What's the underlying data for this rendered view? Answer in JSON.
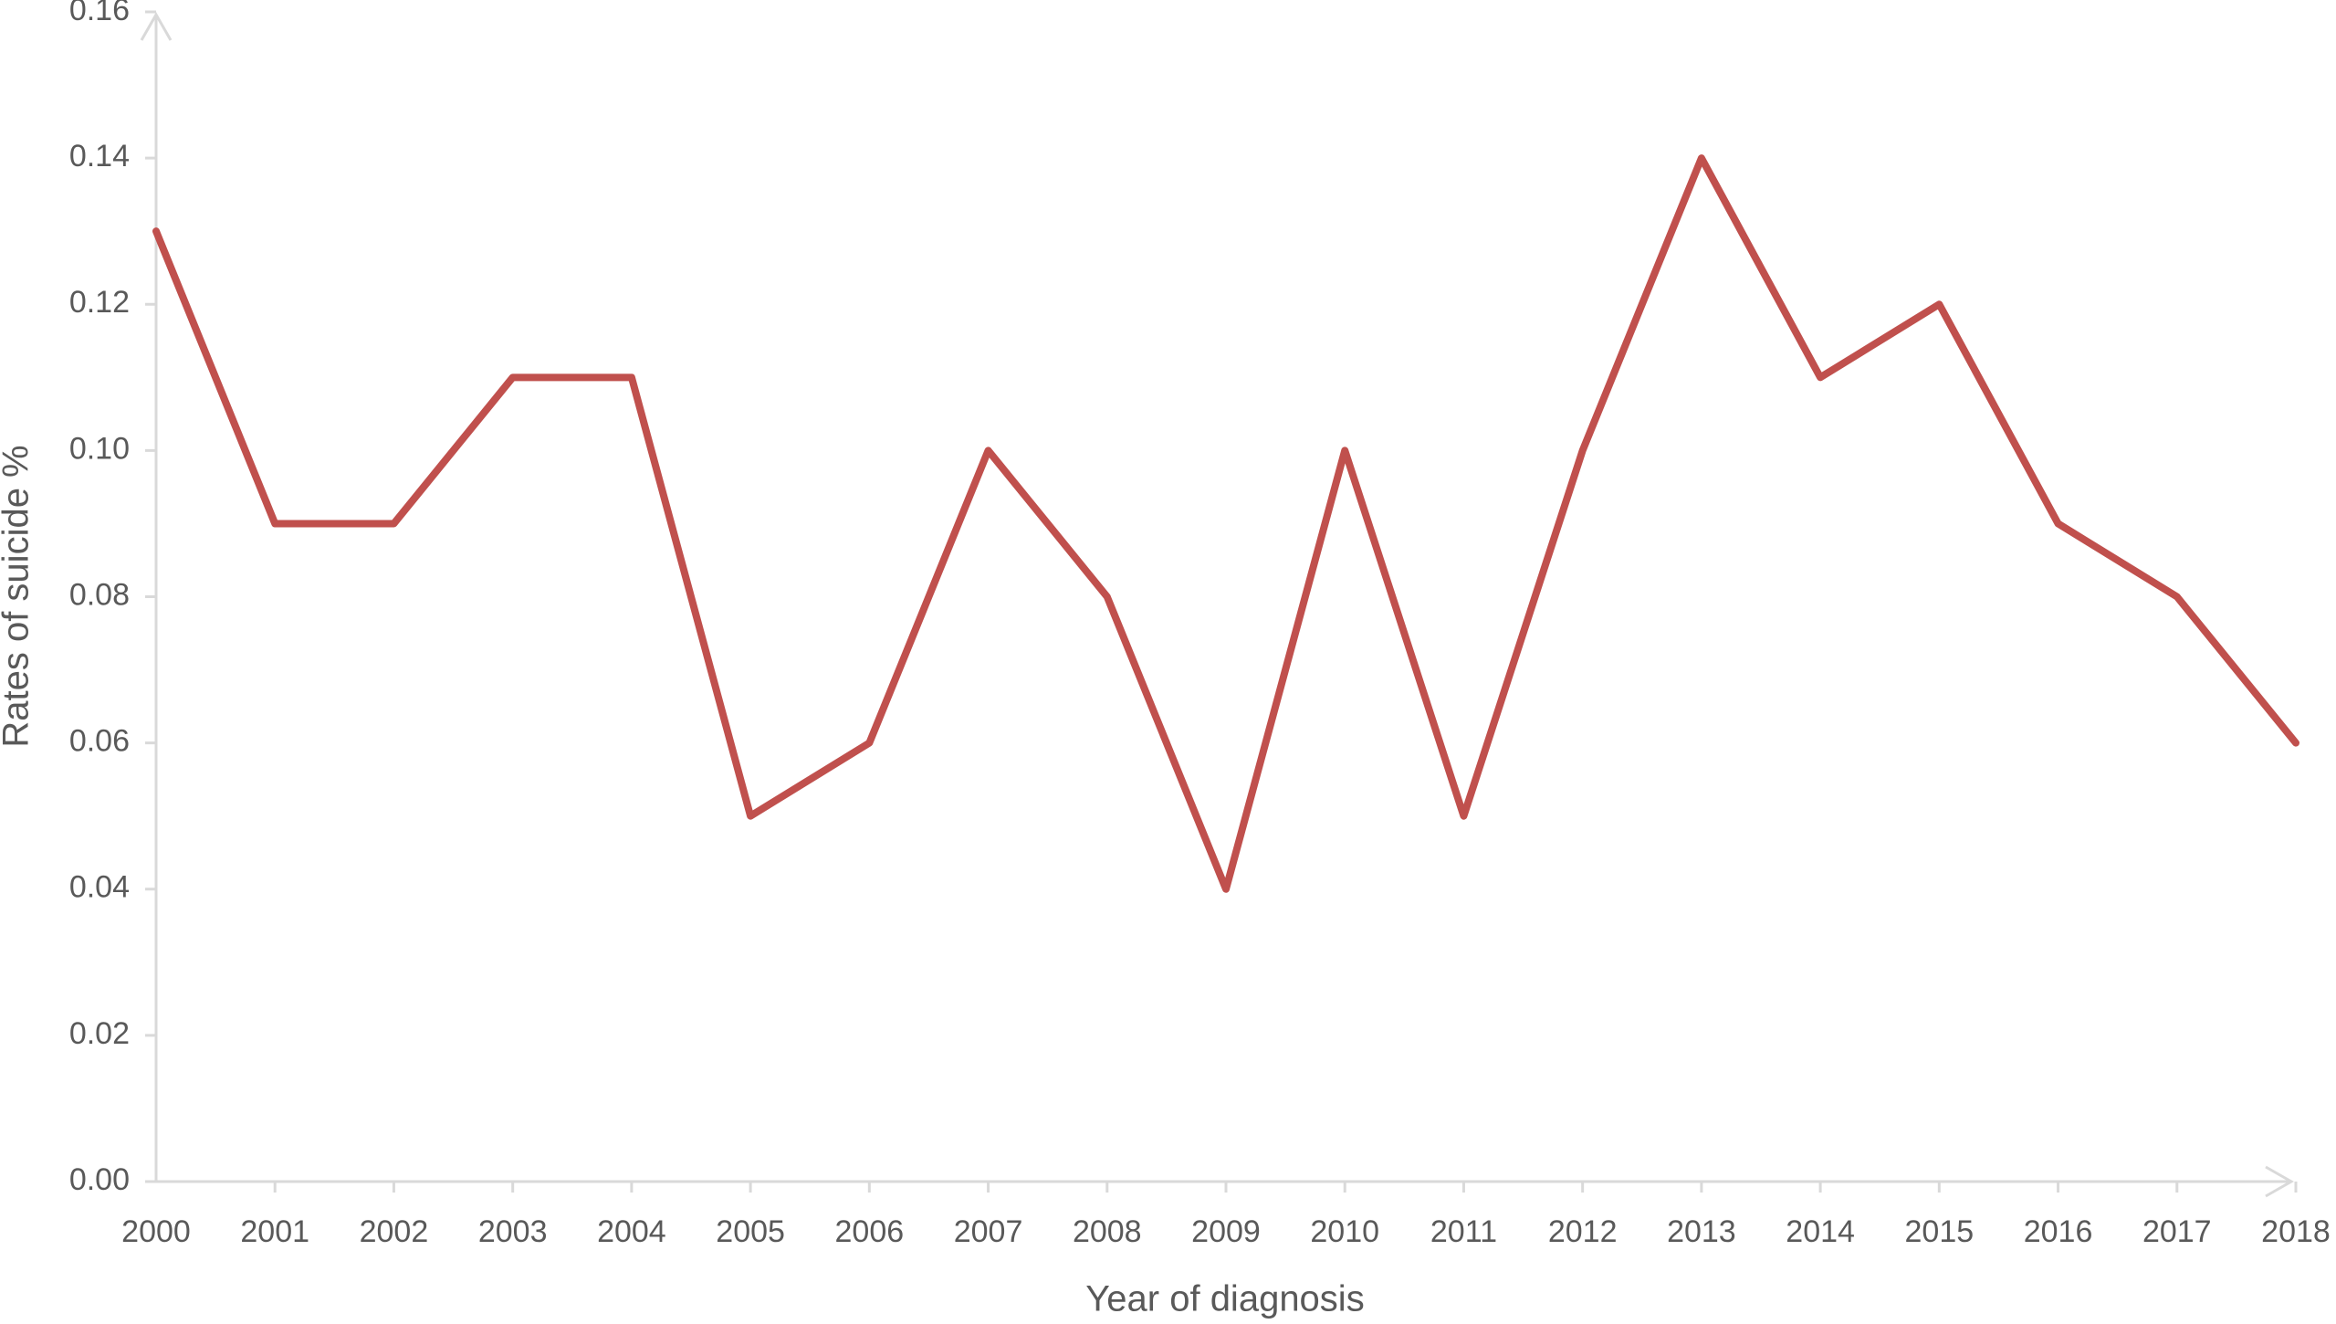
{
  "chart_data": {
    "type": "line",
    "x_label": "Year of diagnosis",
    "y_label": "Rates of suicide %",
    "categories": [
      "2000",
      "2001",
      "2002",
      "2003",
      "2004",
      "2005",
      "2006",
      "2007",
      "2008",
      "2009",
      "2010",
      "2011",
      "2012",
      "2013",
      "2014",
      "2015",
      "2016",
      "2017",
      "2018"
    ],
    "series": [
      {
        "name": "Rates of suicide %",
        "color": "#c0504d",
        "values": [
          0.13,
          0.09,
          0.09,
          0.11,
          0.11,
          0.05,
          0.06,
          0.1,
          0.08,
          0.04,
          0.1,
          0.05,
          0.1,
          0.14,
          0.11,
          0.12,
          0.09,
          0.08,
          0.06
        ]
      }
    ],
    "ylim": [
      0,
      0.16
    ],
    "yticks": [
      {
        "value": 0,
        "label": "0.00"
      },
      {
        "value": 0.02,
        "label": "0.02"
      },
      {
        "value": 0.04,
        "label": "0.04"
      },
      {
        "value": 0.06,
        "label": "0.06"
      },
      {
        "value": 0.08,
        "label": "0.08"
      },
      {
        "value": 0.1,
        "label": "0.10"
      },
      {
        "value": 0.12,
        "label": "0.12"
      },
      {
        "value": 0.14,
        "label": "0.14"
      },
      {
        "value": 0.16,
        "label": "0.16"
      }
    ],
    "grid": false
  }
}
